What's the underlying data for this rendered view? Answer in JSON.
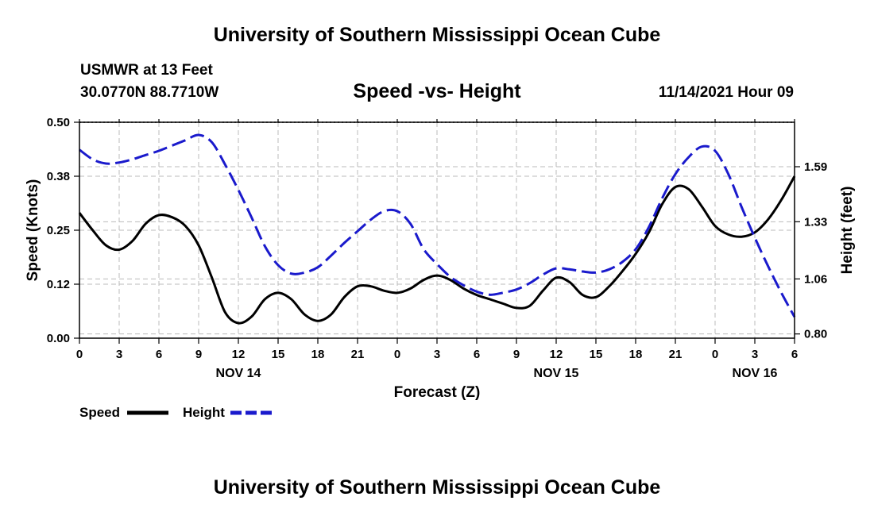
{
  "header": {
    "title": "University of Southern Mississippi Ocean Cube",
    "station": "USMWR at 13 Feet",
    "location": "30.0770N  88.7710W",
    "datetime": "11/14/2021 Hour 09"
  },
  "footer": {
    "title": "University of Southern Mississippi Ocean Cube"
  },
  "legend": {
    "speed_label": "Speed",
    "height_label": "Height"
  },
  "colors": {
    "speed": "#000000",
    "height": "#1a1acc",
    "grid": "#bbbbbb"
  },
  "chart_data": {
    "type": "line",
    "title": "Speed -vs- Height",
    "xlabel": "Forecast (Z)",
    "ylabel": "Speed (Knots)",
    "y2label": "Height (feet)",
    "x_range": [
      0,
      54
    ],
    "x_ticks": [
      {
        "x": 0,
        "label": "0"
      },
      {
        "x": 3,
        "label": "3"
      },
      {
        "x": 6,
        "label": "6"
      },
      {
        "x": 9,
        "label": "9"
      },
      {
        "x": 12,
        "label": "12"
      },
      {
        "x": 15,
        "label": "15"
      },
      {
        "x": 18,
        "label": "18"
      },
      {
        "x": 21,
        "label": "21"
      },
      {
        "x": 24,
        "label": "0"
      },
      {
        "x": 27,
        "label": "3"
      },
      {
        "x": 30,
        "label": "6"
      },
      {
        "x": 33,
        "label": "9"
      },
      {
        "x": 36,
        "label": "12"
      },
      {
        "x": 39,
        "label": "15"
      },
      {
        "x": 42,
        "label": "18"
      },
      {
        "x": 45,
        "label": "21"
      },
      {
        "x": 48,
        "label": "0"
      },
      {
        "x": 51,
        "label": "3"
      },
      {
        "x": 54,
        "label": "6"
      }
    ],
    "date_labels": [
      {
        "x": 12,
        "label": "NOV 14"
      },
      {
        "x": 36,
        "label": "NOV 15"
      },
      {
        "x": 51,
        "label": "NOV 16"
      }
    ],
    "ylim": [
      0,
      0.5
    ],
    "y_ticks": [
      {
        "v": 0.0,
        "label": "0.00"
      },
      {
        "v": 0.125,
        "label": "0.12"
      },
      {
        "v": 0.25,
        "label": "0.25"
      },
      {
        "v": 0.375,
        "label": "0.38"
      },
      {
        "v": 0.5,
        "label": "0.50"
      }
    ],
    "y2lim": [
      0.78,
      1.8
    ],
    "y2_ticks": [
      {
        "v": 0.8,
        "label": "0.80"
      },
      {
        "v": 1.06,
        "label": "1.06"
      },
      {
        "v": 1.33,
        "label": "1.33"
      },
      {
        "v": 1.59,
        "label": "1.59"
      }
    ],
    "series": [
      {
        "name": "Speed",
        "axis": "left",
        "style": "solid",
        "points": [
          [
            0,
            0.29
          ],
          [
            1,
            0.25
          ],
          [
            2,
            0.215
          ],
          [
            3,
            0.205
          ],
          [
            4,
            0.225
          ],
          [
            5,
            0.265
          ],
          [
            6,
            0.285
          ],
          [
            7,
            0.28
          ],
          [
            8,
            0.26
          ],
          [
            9,
            0.215
          ],
          [
            10,
            0.14
          ],
          [
            11,
            0.06
          ],
          [
            12,
            0.035
          ],
          [
            13,
            0.05
          ],
          [
            14,
            0.09
          ],
          [
            15,
            0.105
          ],
          [
            16,
            0.09
          ],
          [
            17,
            0.055
          ],
          [
            18,
            0.04
          ],
          [
            19,
            0.055
          ],
          [
            20,
            0.095
          ],
          [
            21,
            0.12
          ],
          [
            22,
            0.12
          ],
          [
            23,
            0.11
          ],
          [
            24,
            0.105
          ],
          [
            25,
            0.115
          ],
          [
            26,
            0.135
          ],
          [
            27,
            0.145
          ],
          [
            28,
            0.135
          ],
          [
            29,
            0.115
          ],
          [
            30,
            0.1
          ],
          [
            31,
            0.09
          ],
          [
            32,
            0.08
          ],
          [
            33,
            0.07
          ],
          [
            34,
            0.075
          ],
          [
            35,
            0.11
          ],
          [
            36,
            0.14
          ],
          [
            37,
            0.13
          ],
          [
            38,
            0.1
          ],
          [
            39,
            0.095
          ],
          [
            40,
            0.12
          ],
          [
            41,
            0.155
          ],
          [
            42,
            0.195
          ],
          [
            43,
            0.245
          ],
          [
            44,
            0.31
          ],
          [
            45,
            0.35
          ],
          [
            46,
            0.345
          ],
          [
            47,
            0.305
          ],
          [
            48,
            0.26
          ],
          [
            49,
            0.24
          ],
          [
            50,
            0.235
          ],
          [
            51,
            0.245
          ],
          [
            52,
            0.275
          ],
          [
            53,
            0.32
          ],
          [
            54,
            0.375
          ]
        ]
      },
      {
        "name": "Height",
        "axis": "right",
        "style": "dashed",
        "points": [
          [
            0,
            1.67
          ],
          [
            1,
            1.625
          ],
          [
            2,
            1.605
          ],
          [
            3,
            1.61
          ],
          [
            4,
            1.625
          ],
          [
            5,
            1.645
          ],
          [
            6,
            1.665
          ],
          [
            7,
            1.69
          ],
          [
            8,
            1.715
          ],
          [
            9,
            1.74
          ],
          [
            10,
            1.705
          ],
          [
            11,
            1.6
          ],
          [
            12,
            1.48
          ],
          [
            13,
            1.35
          ],
          [
            14,
            1.215
          ],
          [
            15,
            1.125
          ],
          [
            16,
            1.085
          ],
          [
            17,
            1.09
          ],
          [
            18,
            1.115
          ],
          [
            19,
            1.17
          ],
          [
            20,
            1.23
          ],
          [
            21,
            1.285
          ],
          [
            22,
            1.34
          ],
          [
            23,
            1.38
          ],
          [
            24,
            1.38
          ],
          [
            25,
            1.32
          ],
          [
            26,
            1.2
          ],
          [
            27,
            1.13
          ],
          [
            28,
            1.07
          ],
          [
            29,
            1.03
          ],
          [
            30,
            1.0
          ],
          [
            31,
            0.985
          ],
          [
            32,
            0.995
          ],
          [
            33,
            1.01
          ],
          [
            34,
            1.04
          ],
          [
            35,
            1.08
          ],
          [
            36,
            1.11
          ],
          [
            37,
            1.105
          ],
          [
            38,
            1.095
          ],
          [
            39,
            1.09
          ],
          [
            40,
            1.105
          ],
          [
            41,
            1.14
          ],
          [
            42,
            1.2
          ],
          [
            43,
            1.305
          ],
          [
            44,
            1.44
          ],
          [
            45,
            1.555
          ],
          [
            46,
            1.635
          ],
          [
            47,
            1.685
          ],
          [
            48,
            1.665
          ],
          [
            49,
            1.555
          ],
          [
            50,
            1.4
          ],
          [
            51,
            1.255
          ],
          [
            52,
            1.12
          ],
          [
            53,
            0.995
          ],
          [
            54,
            0.88
          ]
        ]
      }
    ]
  }
}
